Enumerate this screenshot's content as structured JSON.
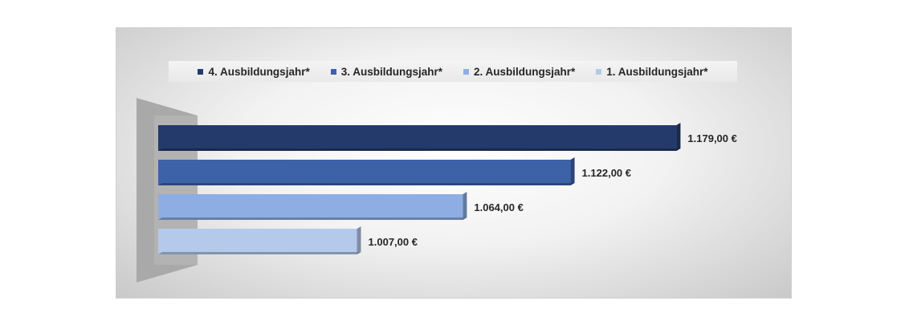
{
  "chart_data": {
    "type": "bar",
    "orientation": "horizontal",
    "three_d": true,
    "series": [
      {
        "name": "4. Ausbildungsjahr*",
        "value": 1179.0,
        "label": "1.179,00 €",
        "color": "#233a6b"
      },
      {
        "name": "3. Ausbildungsjahr*",
        "value": 1122.0,
        "label": "1.122,00 €",
        "color": "#3d62a8"
      },
      {
        "name": "2. Ausbildungsjahr*",
        "value": 1064.0,
        "label": "1.064,00 €",
        "color": "#8eaee3"
      },
      {
        "name": "1. Ausbildungsjahr*",
        "value": 1007.0,
        "label": "1.007,00 €",
        "color": "#b5caeb"
      }
    ],
    "xlim": [
      900,
      1200
    ],
    "grid": false,
    "legend": "top"
  }
}
